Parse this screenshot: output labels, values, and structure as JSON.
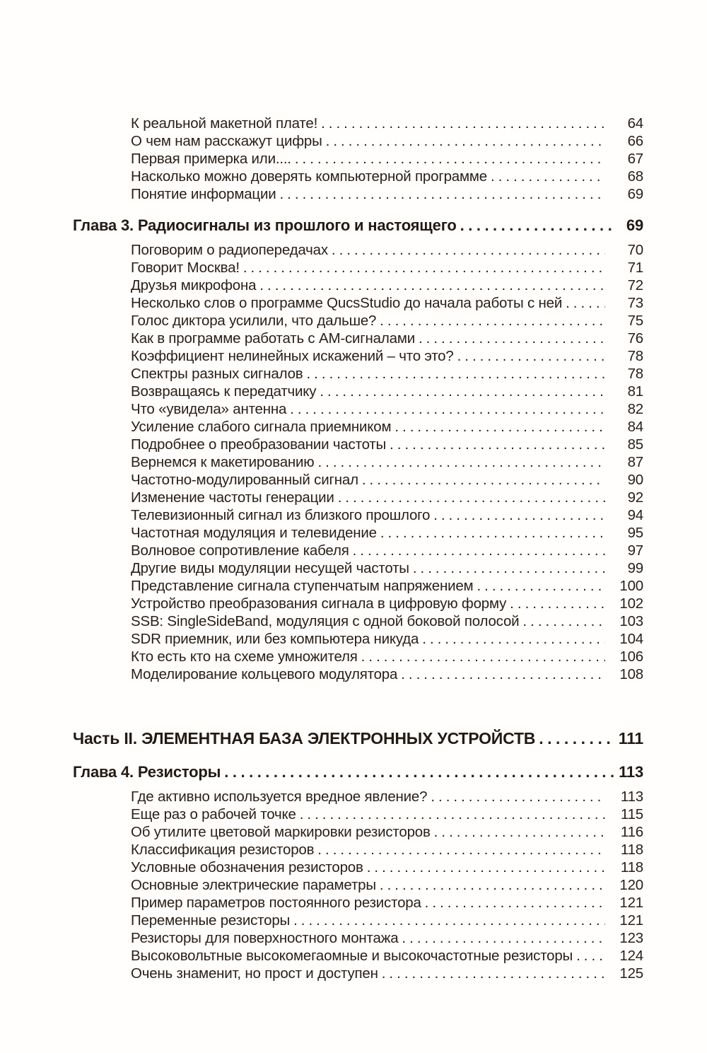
{
  "page": {
    "kind": "book-table-of-contents",
    "language": "ru",
    "text_color": "#2b2018",
    "background": "#fffefd"
  },
  "toc": {
    "sections": [
      {
        "type": "entries",
        "items": [
          {
            "title": "К реальной макетной плате!",
            "page": "64"
          },
          {
            "title": "О чем нам расскажут цифры",
            "page": "66"
          },
          {
            "title": "Первая примерка или....",
            "page": "67"
          },
          {
            "title": "Насколько можно доверять компьютерной программе",
            "page": "68"
          },
          {
            "title": "Понятие информации",
            "page": "69"
          }
        ]
      },
      {
        "type": "chapter",
        "title": "Глава 3. Радиосигналы из прошлого и настоящего",
        "page": "69",
        "items": [
          {
            "title": "Поговорим о радиопередачах",
            "page": "70"
          },
          {
            "title": "Говорит Москва!",
            "page": "71"
          },
          {
            "title": "Друзья микрофона",
            "page": "72"
          },
          {
            "title": "Несколько слов о программе QucsStudio до начала работы с ней",
            "page": "73"
          },
          {
            "title": "Голос диктора усилили, что дальше?",
            "page": "75"
          },
          {
            "title": "Как в программе работать с АМ-сигналами",
            "page": "76"
          },
          {
            "title": "Коэффициент нелинейных искажений – что это?",
            "page": "78"
          },
          {
            "title": "Спектры разных сигналов",
            "page": "78"
          },
          {
            "title": "Возвращаясь к передатчику",
            "page": "81"
          },
          {
            "title": "Что «увидела» антенна",
            "page": "82"
          },
          {
            "title": "Усиление слабого сигнала приемником",
            "page": "84"
          },
          {
            "title": "Подробнее о преобразовании частоты",
            "page": "85"
          },
          {
            "title": "Вернемся к макетированию",
            "page": "87"
          },
          {
            "title": "Частотно-модулированный сигнал",
            "page": "90"
          },
          {
            "title": "Изменение частоты генерации",
            "page": "92"
          },
          {
            "title": "Телевизионный сигнал из близкого прошлого",
            "page": "94"
          },
          {
            "title": "Частотная модуляция и телевидение",
            "page": "95"
          },
          {
            "title": "Волновое сопротивление кабеля",
            "page": "97"
          },
          {
            "title": "Другие виды модуляции несущей частоты",
            "page": "99"
          },
          {
            "title": "Представление сигнала ступенчатым напряжением",
            "page": "100"
          },
          {
            "title": "Устройство преобразования сигнала в цифровую форму",
            "page": "102"
          },
          {
            "title": "SSB: SingleSideBand, модуляция с одной боковой полосой",
            "page": "103"
          },
          {
            "title": "SDR приемник, или без компьютера никуда",
            "page": "104"
          },
          {
            "title": "Кто есть кто на схеме умножителя",
            "page": "106"
          },
          {
            "title": "Моделирование кольцевого модулятора",
            "page": "108"
          }
        ]
      },
      {
        "type": "part",
        "title": "Часть II. ЭЛЕМЕНТНАЯ БАЗА ЭЛЕКТРОННЫХ УСТРОЙСТВ",
        "page": "111",
        "items": []
      },
      {
        "type": "chapter",
        "title": "Глава 4. Резисторы",
        "page": "113",
        "items": [
          {
            "title": "Где активно используется вредное явление?",
            "page": "113"
          },
          {
            "title": "Еще раз о рабочей точке",
            "page": "115"
          },
          {
            "title": "Об утилите цветовой маркировки резисторов",
            "page": "116"
          },
          {
            "title": "Классификация резисторов",
            "page": "118"
          },
          {
            "title": "Условные обозначения резисторов",
            "page": "118"
          },
          {
            "title": "Основные электрические параметры",
            "page": "120"
          },
          {
            "title": "Пример параметров постоянного резистора",
            "page": "121"
          },
          {
            "title": "Переменные резисторы",
            "page": "121"
          },
          {
            "title": "Резисторы для поверхностного монтажа",
            "page": "123"
          },
          {
            "title": "Высоковольтные высокомегаомные и высокочастотные резисторы",
            "page": "124"
          },
          {
            "title": "Очень знаменит, но прост и доступен",
            "page": "125"
          }
        ]
      }
    ]
  }
}
